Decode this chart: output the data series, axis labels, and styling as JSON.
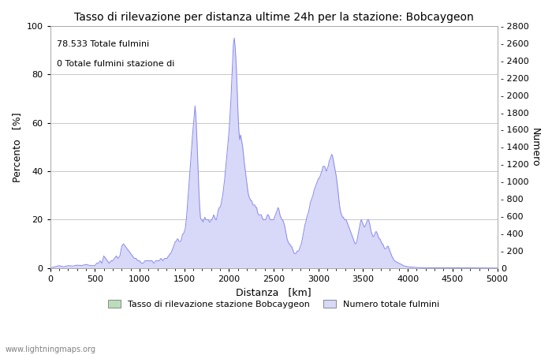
{
  "title": "Tasso di rilevazione per distanza ultime 24h per la stazione: Bobcaygeon",
  "xlabel": "Distanza   [km]",
  "ylabel_left": "Percento   [%]",
  "ylabel_right": "Numero",
  "text_annotations": [
    "78.533 Totale fulmini",
    "0 Totale fulmini stazione di"
  ],
  "xlim": [
    0,
    5000
  ],
  "ylim_left": [
    0,
    100
  ],
  "ylim_right": [
    0,
    2800
  ],
  "xticks": [
    0,
    500,
    1000,
    1500,
    2000,
    2500,
    3000,
    3500,
    4000,
    4500,
    5000
  ],
  "yticks_left": [
    0,
    20,
    40,
    60,
    80,
    100
  ],
  "yticks_right": [
    0,
    200,
    400,
    600,
    800,
    1000,
    1200,
    1400,
    1600,
    1800,
    2000,
    2200,
    2400,
    2600,
    2800
  ],
  "bg_color": "#ffffff",
  "grid_color": "#c8c8c8",
  "blue_line_color": "#8888ee",
  "blue_fill_color": "#d8d8f8",
  "green_fill_color": "#bbddbb",
  "watermark": "www.lightningmaps.org",
  "legend_label_green": "Tasso di rilevazione stazione Bobcaygeon",
  "legend_label_blue": "Numero totale fulmini",
  "title_fontsize": 10,
  "axis_fontsize": 9,
  "tick_fontsize": 8,
  "annotation_fontsize": 8
}
